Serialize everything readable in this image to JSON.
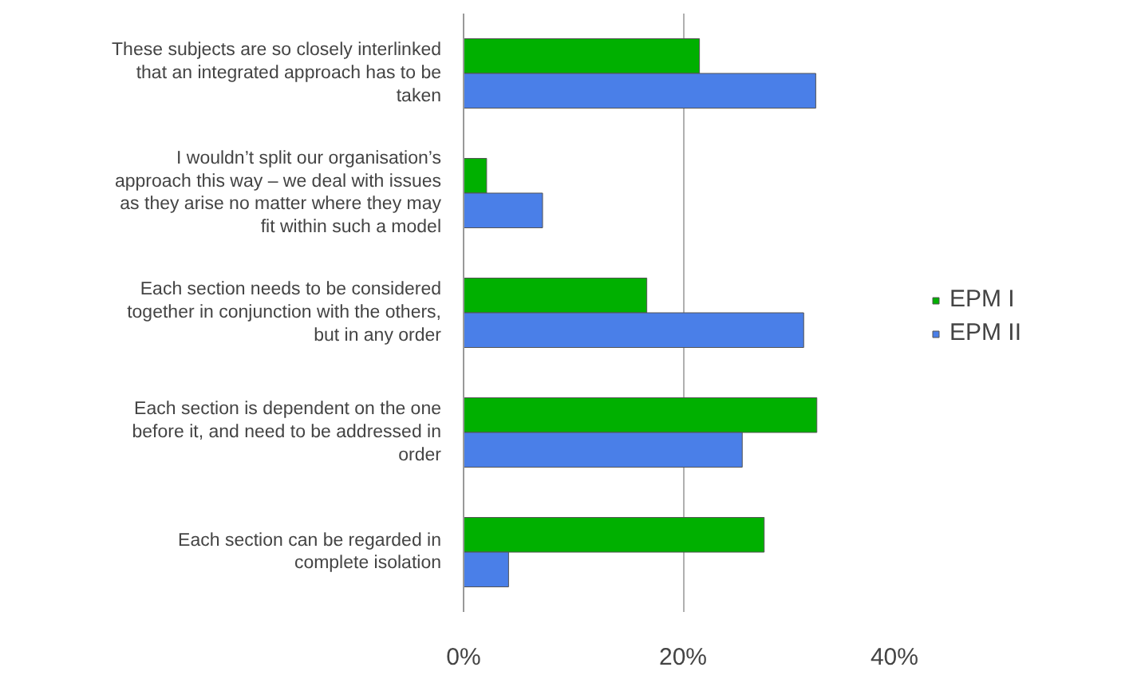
{
  "chart_data": {
    "type": "bar",
    "orientation": "horizontal",
    "categories": [
      "These subjects are so closely interlinked\nthat an integrated approach has to be\ntaken",
      "I wouldn’t split our organisation’s\napproach this way – we deal with issues\nas they arise no matter where they may\nfit within such a model",
      "Each section needs to be considered\ntogether in conjunction with the others,\nbut in any order",
      "Each section is dependent on the one\nbefore it, and need to be addressed in\norder",
      "Each section can be regarded in\ncomplete isolation"
    ],
    "series": [
      {
        "name": "EPM I",
        "color": "#00b000",
        "values": [
          21.5,
          2.1,
          16.7,
          32.2,
          27.4
        ]
      },
      {
        "name": "EPM II",
        "color": "#4a7fe8",
        "values": [
          32.1,
          7.2,
          31.0,
          25.4,
          4.1
        ]
      }
    ],
    "xlim": [
      0,
      40
    ],
    "xticks": [
      {
        "value": 0,
        "label": "0%"
      },
      {
        "value": 20,
        "label": "20%"
      },
      {
        "value": 40,
        "label": "40%"
      }
    ],
    "grid": "x",
    "legend": "right"
  }
}
